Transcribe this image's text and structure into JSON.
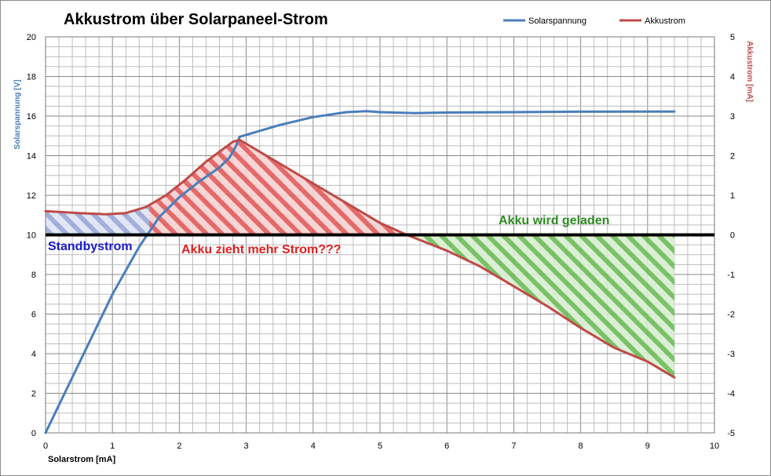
{
  "chart_data": {
    "type": "line",
    "title": "Akkustrom über Solarpaneel-Strom",
    "xlabel": "Solarstrom [mA]",
    "ylabel_left": "Solarspannung [V]",
    "ylabel_right": "Akkustrom [mA]",
    "xlim": [
      0,
      10
    ],
    "ylim_left": [
      0,
      20
    ],
    "ylim_right": [
      -5,
      5
    ],
    "x_ticks": [
      "0",
      "1",
      "2",
      "3",
      "4",
      "5",
      "6",
      "7",
      "8",
      "9",
      "10"
    ],
    "y_left_ticks": [
      "0",
      "2",
      "4",
      "6",
      "8",
      "10",
      "12",
      "14",
      "16",
      "18",
      "20"
    ],
    "y_right_ticks": [
      "-5",
      "-4",
      "-3",
      "-2",
      "-1",
      "0",
      "1",
      "2",
      "3",
      "4",
      "5"
    ],
    "grid": true,
    "legend_position": "top-right",
    "series": [
      {
        "name": "Solarspannung",
        "axis": "left",
        "color": "#4a7ebb",
        "x": [
          0,
          0.5,
          1.0,
          1.4,
          1.7,
          2.0,
          2.3,
          2.6,
          2.75,
          2.85,
          2.9,
          3.0,
          3.2,
          3.5,
          4.0,
          4.5,
          4.8,
          5.0,
          5.5,
          6.0,
          7.0,
          8.0,
          9.0,
          9.4
        ],
        "values": [
          0,
          3.5,
          7.0,
          9.4,
          10.9,
          11.9,
          12.7,
          13.4,
          13.9,
          14.5,
          14.95,
          15.05,
          15.25,
          15.55,
          15.95,
          16.2,
          16.25,
          16.2,
          16.15,
          16.18,
          16.2,
          16.22,
          16.23,
          16.23
        ]
      },
      {
        "name": "Akkustrom",
        "axis": "right",
        "color": "#be4b48",
        "x": [
          0,
          0.5,
          0.9,
          1.2,
          1.5,
          1.8,
          2.1,
          2.4,
          2.6,
          2.8,
          2.9,
          3.5,
          4.0,
          4.5,
          5.0,
          5.4,
          6.0,
          6.5,
          7.0,
          7.5,
          8.0,
          8.5,
          9.0,
          9.4
        ],
        "values": [
          0.6,
          0.55,
          0.52,
          0.55,
          0.7,
          1.0,
          1.4,
          1.85,
          2.1,
          2.35,
          2.4,
          1.8,
          1.3,
          0.8,
          0.3,
          0,
          -0.4,
          -0.8,
          -1.3,
          -1.8,
          -2.35,
          -2.85,
          -3.2,
          -3.6
        ]
      }
    ],
    "reference_line": {
      "axis": "right",
      "value": 0,
      "color": "#000000"
    },
    "annotations": [
      {
        "text": "Akku wird geladen",
        "color": "#2e8b22"
      },
      {
        "text": "Standbystrom",
        "color": "#1a1acc"
      },
      {
        "text": "Akku zieht mehr Strom???",
        "color": "#e02020"
      }
    ],
    "shaded_regions": [
      {
        "name": "standby",
        "color": "#9aa6d6",
        "x_from": 0,
        "x_to": 1.55
      },
      {
        "name": "discharge",
        "color": "#e06060",
        "x_from": 1.55,
        "x_to": 5.4
      },
      {
        "name": "charge",
        "color": "#5fb04a",
        "x_from": 5.4,
        "x_to": 9.4
      }
    ]
  }
}
